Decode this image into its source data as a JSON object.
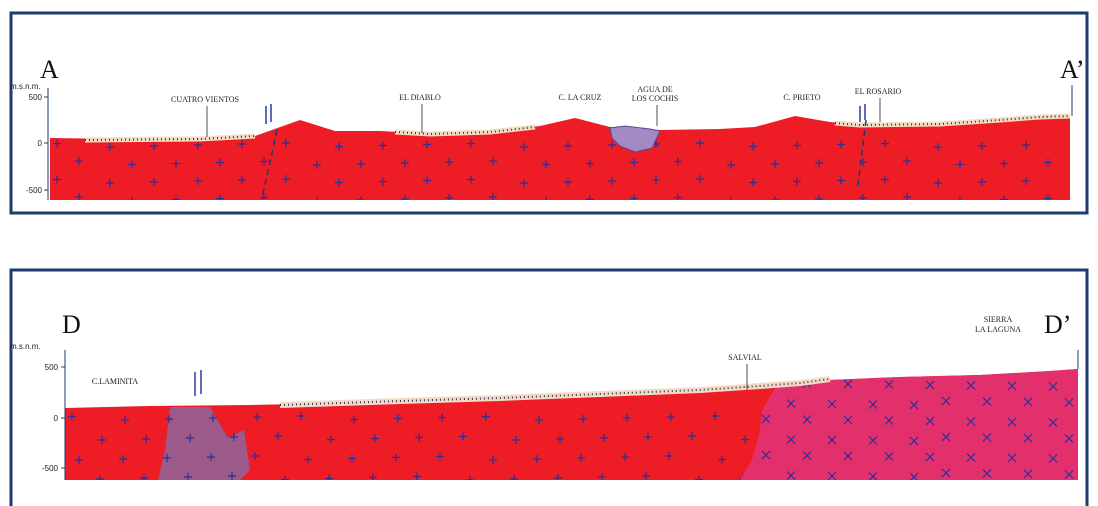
{
  "sections": [
    {
      "start_label": "A",
      "end_label": "A’",
      "axis_unit": "m.s.n.m.",
      "axis_ticks": [
        "500",
        "0",
        "-500"
      ],
      "places": [
        {
          "lines": [
            "CUATRO VIENTOS"
          ]
        },
        {
          "lines": [
            "EL DIABLO"
          ]
        },
        {
          "lines": [
            "C. LA CRUZ"
          ]
        },
        {
          "lines": [
            "AGUA DE",
            "LOS COCHIS"
          ]
        },
        {
          "lines": [
            "C. PRIETO"
          ]
        },
        {
          "lines": [
            "EL ROSARIO"
          ]
        }
      ]
    },
    {
      "start_label": "D",
      "end_label": "D’",
      "axis_unit": "m.s.n.m.",
      "axis_ticks": [
        "500",
        "0",
        "-500"
      ],
      "places": [
        {
          "lines": [
            "C.LAMINITA"
          ]
        },
        {
          "lines": [
            "SALVIAL"
          ]
        },
        {
          "lines": [
            "SIERRA",
            "LA LAGUNA"
          ]
        }
      ]
    }
  ]
}
